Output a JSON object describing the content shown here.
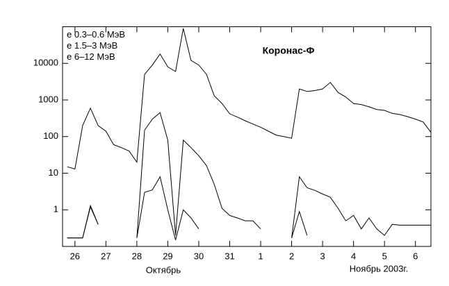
{
  "chart_data": {
    "type": "line",
    "annotation": "Коронас-Ф",
    "x_axis_labels": [
      "Октябрь",
      "Ноябрь 2003г."
    ],
    "log_y": true,
    "legend": "top-left",
    "x": [
      25.75,
      26,
      26.25,
      26.5,
      26.75,
      27,
      27.25,
      27.5,
      27.75,
      28,
      28.25,
      28.5,
      28.75,
      29,
      29.25,
      29.5,
      29.75,
      30,
      30.25,
      30.5,
      30.75,
      31,
      31.25,
      31.5,
      31.75,
      32,
      32.25,
      32.5,
      32.75,
      33,
      33.25,
      33.5,
      33.75,
      34,
      34.25,
      34.5,
      34.75,
      35,
      35.25,
      35.5,
      35.75,
      36,
      36.25,
      36.5,
      36.75,
      37,
      37.25,
      37.5
    ],
    "series": [
      {
        "name": "e  0.3–0.6 МэВ",
        "color": "#000000",
        "values": [
          15,
          13,
          200,
          600,
          200,
          140,
          60,
          50,
          40,
          20,
          5000,
          9000,
          18000,
          8000,
          6000,
          90000,
          12000,
          9000,
          5000,
          1300,
          800,
          420,
          340,
          270,
          220,
          180,
          140,
          110,
          100,
          90,
          2000,
          1700,
          1800,
          2000,
          3000,
          1600,
          1200,
          800,
          750,
          650,
          550,
          520,
          430,
          400,
          350,
          300,
          250,
          130
        ]
      },
      {
        "name": "e  1.5–3 МэВ",
        "color": "#000000",
        "values": [
          0.17,
          0.17,
          0.17,
          1.3,
          0.4,
          null,
          null,
          null,
          null,
          0.17,
          150,
          300,
          450,
          80,
          0.2,
          80,
          50,
          30,
          16,
          5,
          1.1,
          0.7,
          0.6,
          0.5,
          0.5,
          0.3,
          null,
          null,
          null,
          0.17,
          8,
          4,
          3.4,
          2.7,
          2.2,
          1.1,
          0.5,
          0.7,
          0.3,
          0.6,
          0.3,
          0.2,
          0.4,
          0.38,
          0.38,
          0.38,
          0.38,
          0.38
        ]
      },
      {
        "name": "e  6–12 МэВ",
        "color": "#000000",
        "values": [
          0.17,
          0.17,
          0.17,
          1.2,
          0.4,
          null,
          null,
          null,
          null,
          0.17,
          3,
          3.5,
          8,
          1,
          0.15,
          1,
          0.6,
          0.3,
          null,
          null,
          null,
          null,
          null,
          null,
          null,
          null,
          null,
          null,
          null,
          0.17,
          0.9,
          0.2,
          null,
          null,
          null,
          null,
          null,
          null,
          null,
          null,
          null,
          null,
          null,
          null,
          null,
          null,
          null,
          null
        ]
      }
    ],
    "xlim": [
      25.6,
      37.5
    ],
    "xticks": [
      26,
      27,
      28,
      29,
      30,
      31,
      {
        "value": 32,
        "label": "1"
      },
      {
        "value": 33,
        "label": "2"
      },
      {
        "value": 34,
        "label": "3"
      },
      {
        "value": 35,
        "label": "4"
      },
      {
        "value": 36,
        "label": "5"
      },
      {
        "value": 37,
        "label": "6"
      }
    ],
    "ylim": [
      0.1,
      100000
    ],
    "yticks": [
      1,
      10,
      100,
      1000,
      10000
    ]
  }
}
